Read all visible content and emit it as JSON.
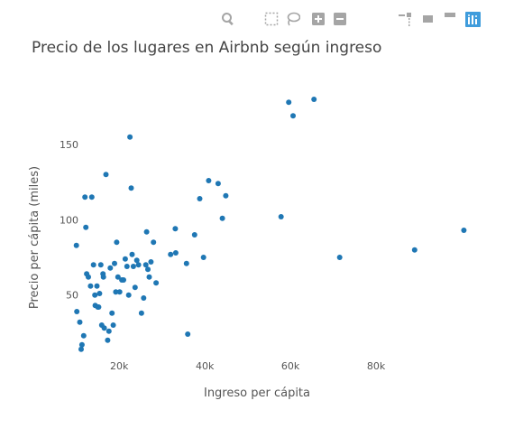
{
  "modebar": {
    "buttons": [
      {
        "icon": "zoom-icon",
        "name": "modebar-zoom-button"
      },
      {
        "icon": "pan-icon",
        "name": "modebar-pan-button"
      },
      {
        "icon": "box-select-icon",
        "name": "modebar-box-select-button"
      },
      {
        "icon": "lasso-select-icon",
        "name": "modebar-lasso-select-button"
      },
      {
        "icon": "zoom-in-icon",
        "name": "modebar-zoom-in-button"
      },
      {
        "icon": "zoom-out-icon",
        "name": "modebar-zoom-out-button"
      },
      {
        "icon": "autoscale-icon",
        "name": "modebar-autoscale-button"
      },
      {
        "icon": "home-icon",
        "name": "modebar-reset-axes-button"
      },
      {
        "icon": "spike-lines-icon",
        "name": "modebar-spike-lines-button"
      },
      {
        "icon": "hover-closest-icon",
        "name": "modebar-hover-closest-button"
      },
      {
        "icon": "hover-compare-icon",
        "name": "modebar-hover-compare-button"
      },
      {
        "icon": "plotly-logo-icon",
        "name": "modebar-plotly-logo"
      }
    ],
    "colors": {
      "icon": "#a5a5a5",
      "logo": "#3f9cdc"
    }
  },
  "chart_data": {
    "type": "scatter",
    "title": "Precio de los lugares en Airbnb según ingreso",
    "xlabel": "Ingreso per cápita",
    "ylabel": "Precio per cápita (miles)",
    "xlim": [
      9000,
      108000
    ],
    "ylim": [
      9,
      192
    ],
    "xticks": [
      20000,
      40000,
      60000,
      80000
    ],
    "xtick_labels": [
      "20k",
      "40k",
      "60k",
      "80k"
    ],
    "yticks": [
      50,
      100,
      150
    ],
    "ytick_labels": [
      "50",
      "100",
      "150"
    ],
    "grid": false,
    "marker_color": "#1f77b4",
    "series": [
      {
        "x": [
          10000,
          10100,
          10800,
          11100,
          11300,
          11700,
          12000,
          12200,
          12400,
          12800,
          13300,
          13600,
          14000,
          14300,
          14400,
          14800,
          15000,
          15200,
          15400,
          15700,
          15900,
          16200,
          16300,
          16500,
          16900,
          17300,
          17600,
          17900,
          18300,
          18600,
          18900,
          19200,
          19400,
          19700,
          20100,
          20600,
          21000,
          21400,
          21800,
          22200,
          22500,
          22800,
          23000,
          23300,
          23700,
          24100,
          24500,
          25200,
          25700,
          26200,
          26400,
          26700,
          27000,
          27400,
          28000,
          28600,
          32000,
          33100,
          33200,
          35700,
          36000,
          37600,
          38800,
          39700,
          40900,
          43100,
          44100,
          44900,
          57800,
          59600,
          60600,
          65500,
          71500,
          89000,
          100500
        ],
        "y": [
          83,
          39,
          32,
          14,
          17,
          23,
          115,
          95,
          64,
          62,
          56,
          115,
          70,
          50,
          43,
          56,
          42,
          42,
          51,
          70,
          30,
          64,
          62,
          28,
          130,
          20,
          26,
          68,
          38,
          30,
          71,
          52,
          85,
          62,
          52,
          60,
          60,
          74,
          69,
          50,
          155,
          121,
          77,
          69,
          55,
          73,
          70,
          38,
          48,
          70,
          92,
          67,
          62,
          72,
          85,
          58,
          77,
          94,
          78,
          71,
          24,
          90,
          114,
          75,
          126,
          124,
          101,
          116,
          102,
          178,
          169,
          180,
          75,
          80,
          93
        ]
      }
    ]
  }
}
